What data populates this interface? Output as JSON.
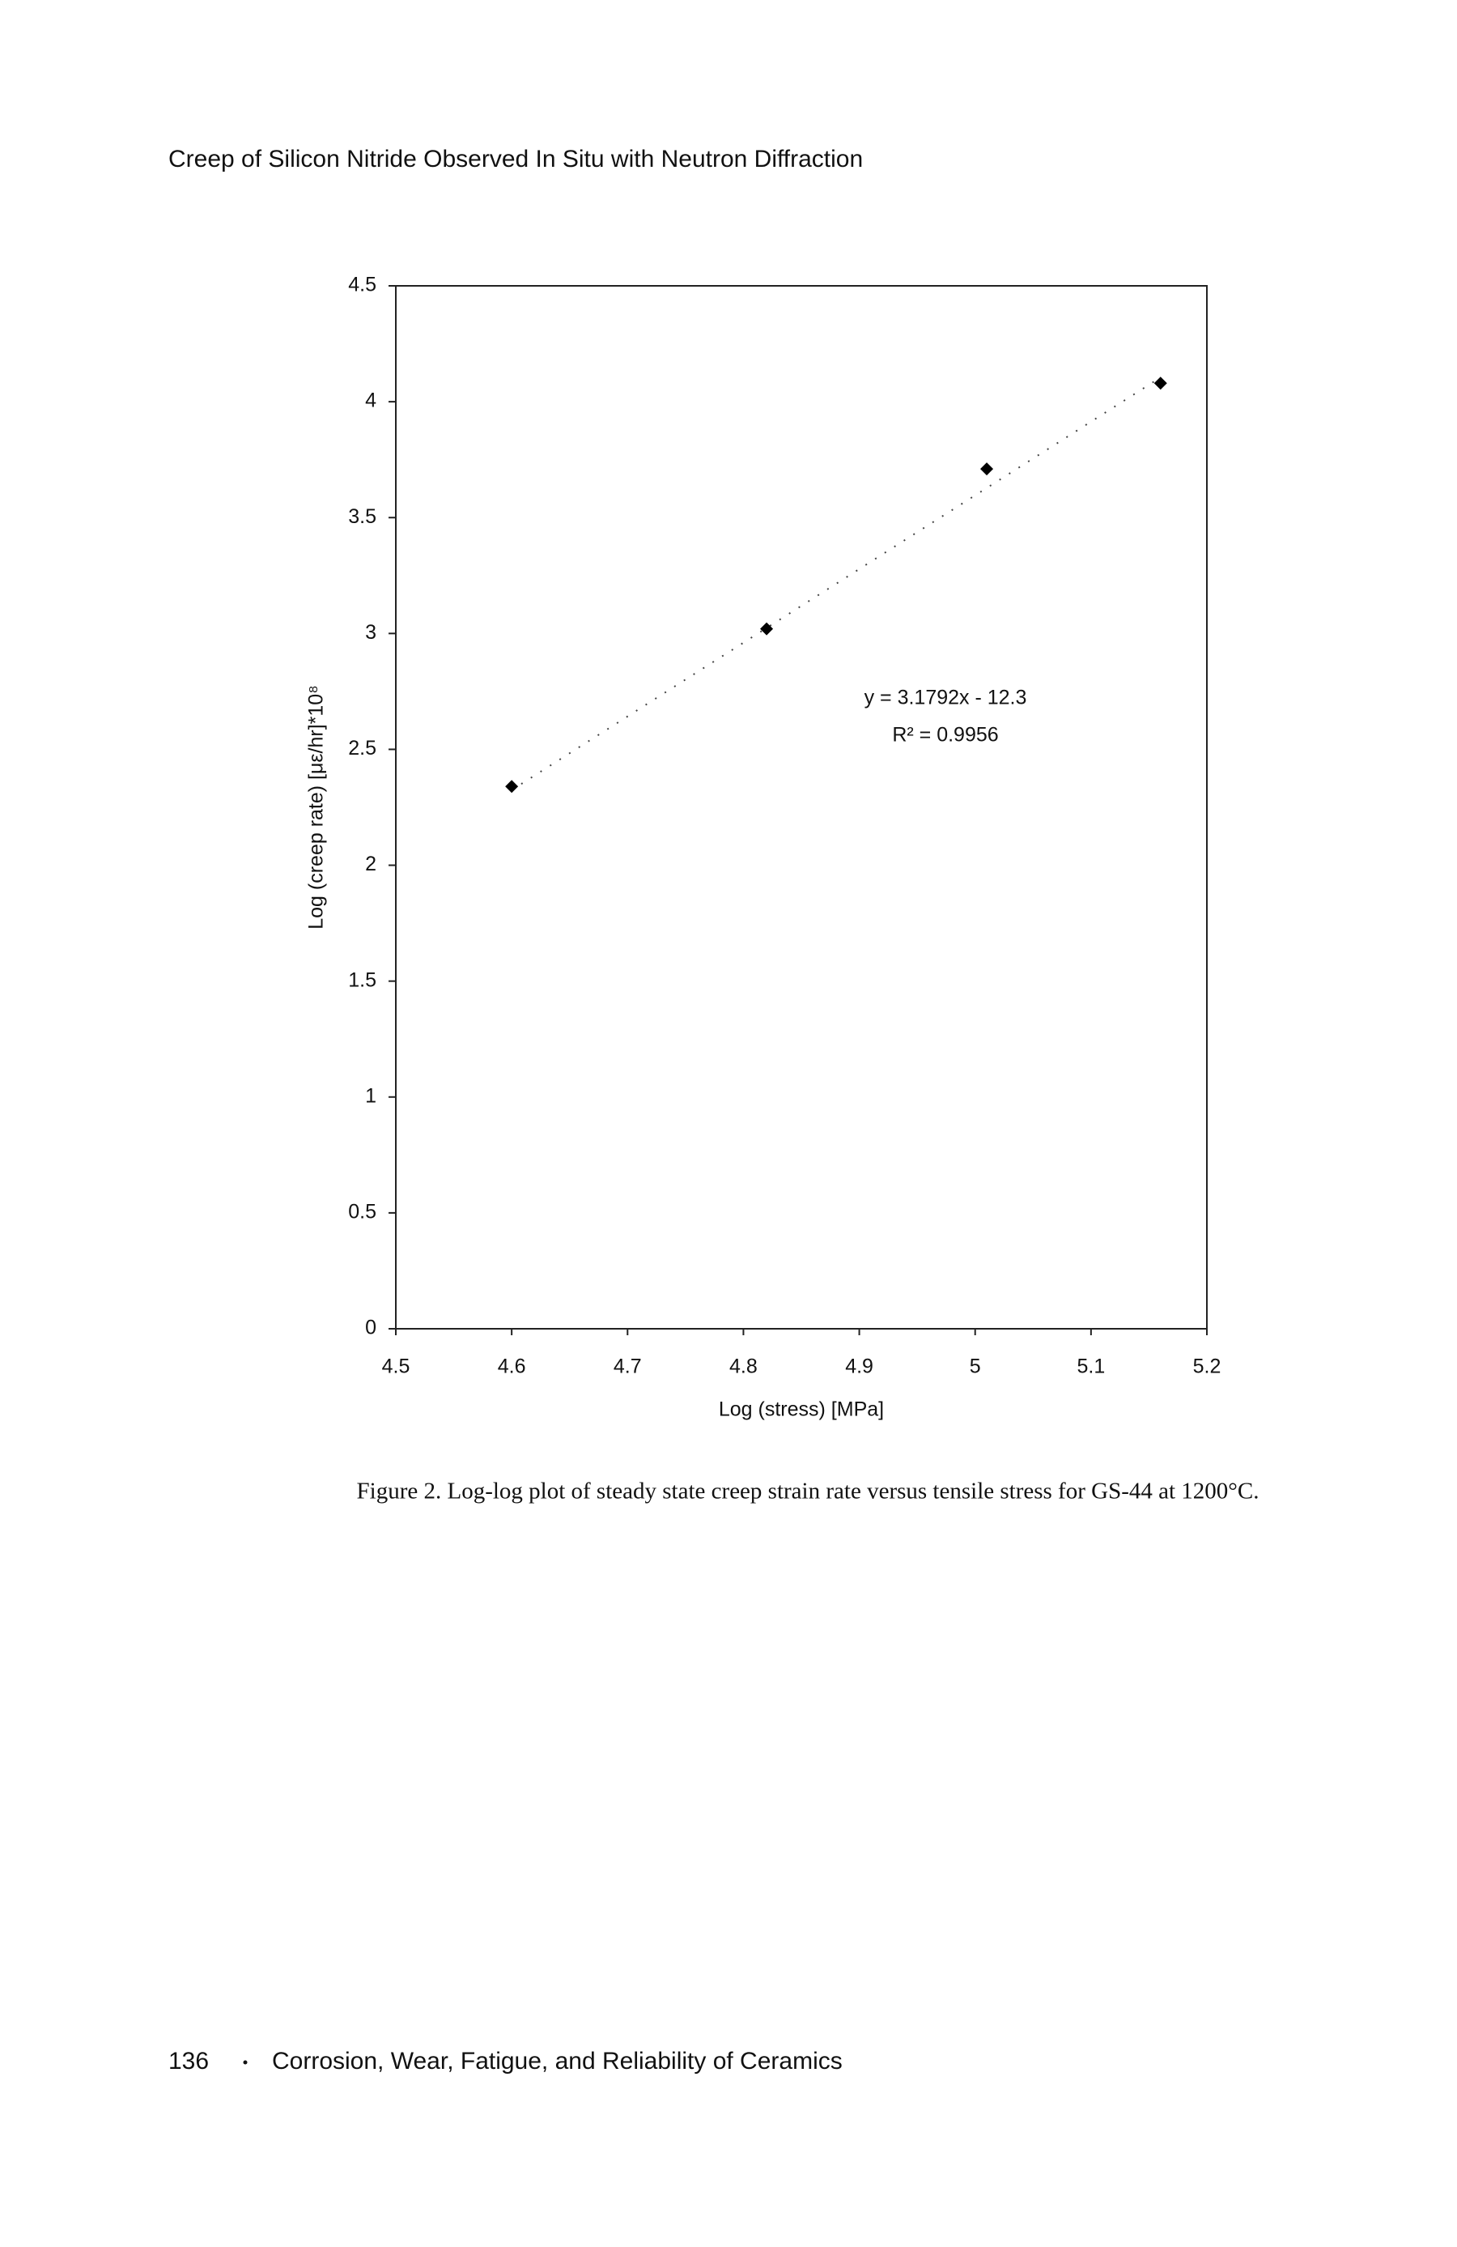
{
  "header": {
    "title": "Creep of Silicon Nitride Observed In Situ with Neutron Diffraction"
  },
  "chart_data": {
    "type": "scatter",
    "x": [
      4.6,
      4.82,
      5.01,
      5.16
    ],
    "values": [
      2.34,
      3.02,
      3.71,
      4.08
    ],
    "color": "#000000",
    "xlabel": "Log (stress) [MPa]",
    "ylabel": "Log (creep rate) [με/hr]*10⁸",
    "xlim": [
      4.5,
      5.2
    ],
    "xticks": [
      4.5,
      4.6,
      4.7,
      4.8,
      4.9,
      5,
      5.1,
      5.2
    ],
    "ylim": [
      0,
      4.5
    ],
    "yticks": [
      0,
      0.5,
      1,
      1.5,
      2,
      2.5,
      3,
      3.5,
      4,
      4.5
    ],
    "grid": false,
    "trendline": {
      "slope": 3.1792,
      "intercept": -12.3,
      "equation": "y = 3.1792x - 12.3",
      "r2": "R² = 0.9956"
    }
  },
  "caption": "Figure 2.  Log-log plot of steady state creep strain rate versus tensile stress for GS-44 at 1200°C.",
  "footer": {
    "page_number": "136",
    "text": "Corrosion, Wear, Fatigue, and Reliability of Ceramics"
  }
}
